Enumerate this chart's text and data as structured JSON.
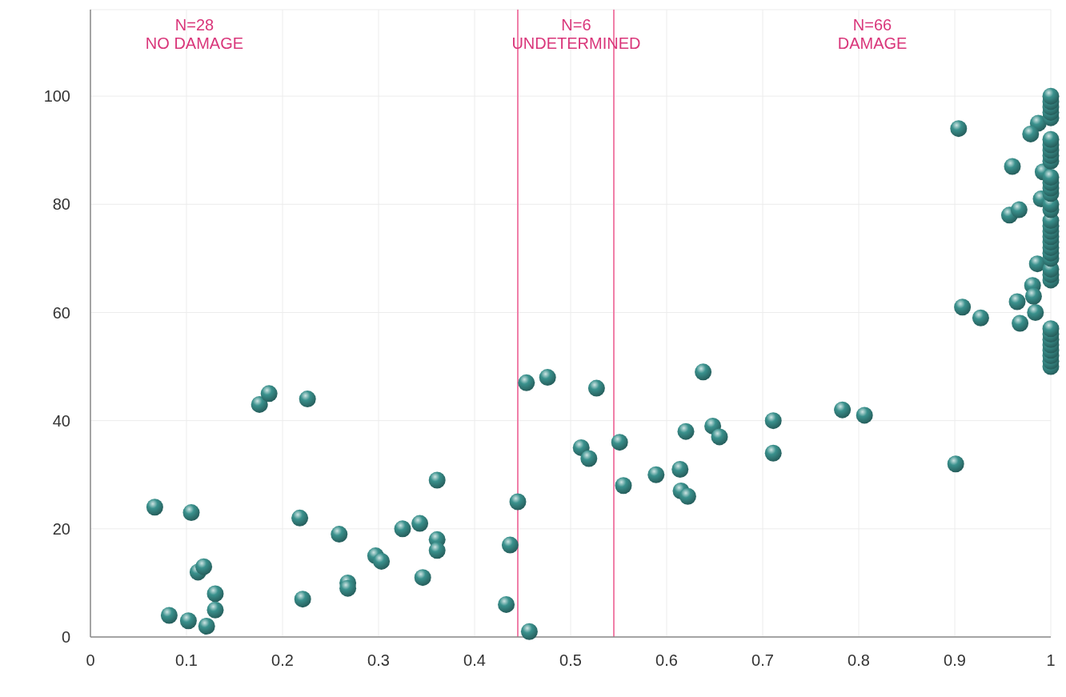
{
  "chart_data": {
    "type": "scatter",
    "x": [
      0.067,
      0.082,
      0.102,
      0.105,
      0.112,
      0.118,
      0.121,
      0.13,
      0.13,
      0.176,
      0.186,
      0.218,
      0.221,
      0.226,
      0.259,
      0.268,
      0.268,
      0.297,
      0.303,
      0.325,
      0.343,
      0.346,
      0.361,
      0.361,
      0.361,
      0.433,
      0.437,
      0.445,
      0.454,
      0.457,
      0.476,
      0.511,
      0.519,
      0.527,
      0.551,
      0.555,
      0.589,
      0.614,
      0.615,
      0.62,
      0.622,
      0.638,
      0.648,
      0.655,
      0.711,
      0.711,
      0.783,
      0.806,
      0.901,
      0.904,
      0.96,
      0.957,
      0.967,
      0.908,
      0.927,
      0.965,
      0.968,
      0.984,
      0.981,
      0.982,
      0.986,
      0.987,
      0.979,
      0.992,
      0.99,
      1,
      1,
      1,
      1,
      1,
      1,
      1,
      1,
      1,
      1,
      1,
      1,
      1,
      1,
      1,
      1,
      1,
      1,
      1,
      1,
      1,
      1,
      1,
      1,
      1,
      1,
      1,
      1,
      1,
      1,
      1,
      1,
      1,
      1,
      1
    ],
    "values": [
      24,
      4,
      3,
      23,
      12,
      13,
      2,
      8,
      5,
      43,
      45,
      22,
      7,
      44,
      19,
      10,
      9,
      15,
      14,
      20,
      21,
      11,
      29,
      18,
      16,
      6,
      17,
      25,
      47,
      1,
      48,
      35,
      33,
      46,
      36,
      28,
      30,
      31,
      27,
      38,
      26,
      49,
      39,
      37,
      40,
      34,
      42,
      41,
      32,
      94,
      87,
      78,
      79,
      61,
      59,
      62,
      58,
      60,
      65,
      63,
      69,
      95,
      93,
      86,
      81,
      50,
      51,
      52,
      53,
      54,
      55,
      56,
      57,
      66,
      67,
      68,
      70,
      71,
      72,
      73,
      74,
      75,
      76,
      77,
      79,
      80,
      82,
      83,
      84,
      85,
      88,
      89,
      90,
      91,
      92,
      96,
      97,
      98,
      99,
      100
    ],
    "color": "#3a918d",
    "marker": "circle",
    "xlim": [
      0,
      1
    ],
    "xticks": [
      0,
      0.1,
      0.2,
      0.3,
      0.4,
      0.5,
      0.6,
      0.7,
      0.8,
      0.9,
      1
    ],
    "ylim": [
      0,
      116
    ],
    "yticks": [
      0,
      20,
      40,
      60,
      80,
      100
    ],
    "grid": true,
    "ref_lines": [
      {
        "axis": "x",
        "value": 0.445,
        "color": "#f07fa8"
      },
      {
        "axis": "x",
        "value": 0.545,
        "color": "#f07fa8"
      }
    ],
    "annotations": [
      "N=28\nNO DAMAGE",
      "N=6\nUNDETERMINED",
      "N=66\nDAMAGE"
    ]
  }
}
